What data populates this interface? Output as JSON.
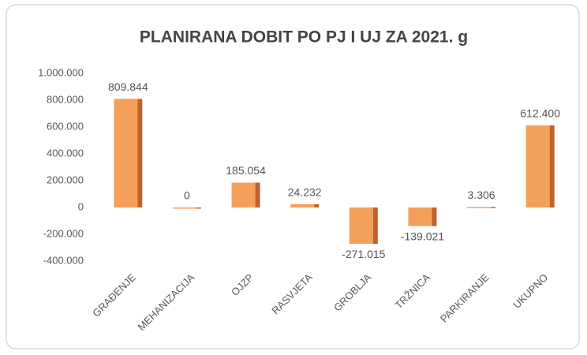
{
  "chart_data": {
    "type": "bar",
    "title": "PLANIRANA DOBIT PO PJ I UJ ZA 2021. g",
    "categories": [
      "GRAĐENJE",
      "MEHANIZACIJA",
      "OJZP",
      "RASVJETA",
      "GROBLJA",
      "TRŽNICA",
      "PARKIRANJE",
      "UKUPNO"
    ],
    "values": [
      809844,
      0,
      185054,
      24232,
      -271015,
      -139021,
      3306,
      612400
    ],
    "value_labels": [
      "809.844",
      "0",
      "185.054",
      "24.232",
      "-271.015",
      "-139.021",
      "3.306",
      "612.400"
    ],
    "color": "#f5a05a",
    "ylim": [
      -400000,
      1000000
    ],
    "yticks": [
      {
        "value": -400000,
        "label": "-400.000"
      },
      {
        "value": -200000,
        "label": "-200.000"
      },
      0,
      {
        "value": 200000,
        "label": "200.000"
      },
      {
        "value": 400000,
        "label": "400.000"
      },
      {
        "value": 600000,
        "label": "600.000"
      },
      {
        "value": 800000,
        "label": "800.000"
      },
      {
        "value": 1000000,
        "label": "1.000.000"
      }
    ],
    "grid": false
  }
}
